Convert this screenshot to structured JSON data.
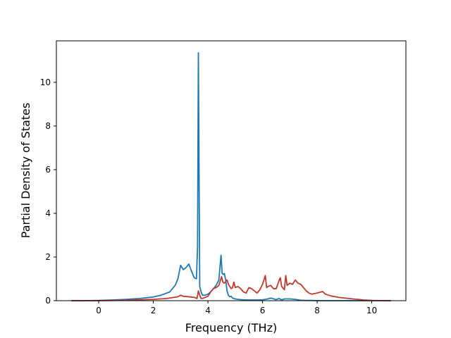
{
  "chart_data": {
    "type": "line",
    "title": "",
    "xlabel": "Frequency (THz)",
    "ylabel": "Partial Density of States",
    "xlim": [
      -1.55,
      11.25
    ],
    "ylim": [
      0,
      11.9
    ],
    "xticks": [
      0,
      2,
      4,
      6,
      8,
      10
    ],
    "yticks": [
      0,
      2,
      4,
      6,
      8,
      10
    ],
    "grid": false,
    "legend": "none",
    "series": [
      {
        "color": "#1f77b4",
        "x": [
          -1.0,
          -0.5,
          0.0,
          0.5,
          1.0,
          1.5,
          2.0,
          2.3,
          2.6,
          2.8,
          2.9,
          3.0,
          3.1,
          3.2,
          3.3,
          3.4,
          3.5,
          3.58,
          3.62,
          3.65,
          3.7,
          3.75,
          3.8,
          3.9,
          4.0,
          4.1,
          4.2,
          4.3,
          4.4,
          4.48,
          4.52,
          4.56,
          4.6,
          4.65,
          4.7,
          4.75,
          4.8,
          4.85,
          4.9,
          5.0,
          5.1,
          5.3,
          5.5,
          5.8,
          6.0,
          6.2,
          6.3,
          6.5,
          6.6,
          6.7,
          6.8,
          7.0,
          7.2,
          7.4,
          7.6,
          7.8,
          8.0,
          8.5,
          9.0,
          10.0,
          10.7
        ],
        "y": [
          0.0,
          0.0,
          0.01,
          0.03,
          0.06,
          0.1,
          0.17,
          0.26,
          0.4,
          0.7,
          1.0,
          1.62,
          1.42,
          1.52,
          1.68,
          1.35,
          1.05,
          1.0,
          2.5,
          11.35,
          0.65,
          0.4,
          0.25,
          0.25,
          0.3,
          0.4,
          0.55,
          0.7,
          0.95,
          2.08,
          1.25,
          1.2,
          1.25,
          0.95,
          0.45,
          0.25,
          0.18,
          0.2,
          0.12,
          0.08,
          0.06,
          0.04,
          0.03,
          0.03,
          0.04,
          0.08,
          0.12,
          0.05,
          0.1,
          0.04,
          0.08,
          0.08,
          0.06,
          0.02,
          0.01,
          0.01,
          0.0,
          0.0,
          0.0,
          0.0,
          0.0
        ]
      },
      {
        "color": "#c0392b",
        "x": [
          -1.0,
          -0.5,
          0.0,
          0.5,
          1.0,
          1.5,
          2.0,
          2.5,
          2.9,
          3.0,
          3.1,
          3.3,
          3.5,
          3.6,
          3.65,
          3.7,
          3.75,
          3.8,
          3.9,
          4.0,
          4.1,
          4.2,
          4.3,
          4.4,
          4.5,
          4.55,
          4.6,
          4.7,
          4.75,
          4.85,
          4.9,
          4.95,
          5.0,
          5.1,
          5.2,
          5.3,
          5.4,
          5.5,
          5.6,
          5.7,
          5.8,
          5.9,
          6.0,
          6.1,
          6.15,
          6.2,
          6.3,
          6.4,
          6.5,
          6.6,
          6.65,
          6.7,
          6.8,
          6.85,
          6.9,
          7.0,
          7.1,
          7.15,
          7.2,
          7.3,
          7.4,
          7.5,
          7.6,
          7.7,
          7.8,
          8.0,
          8.2,
          8.3,
          8.5,
          8.8,
          9.0,
          9.3,
          9.5,
          9.7,
          10.0,
          10.5,
          10.7
        ],
        "y": [
          0.0,
          0.0,
          0.0,
          0.01,
          0.02,
          0.04,
          0.06,
          0.1,
          0.18,
          0.25,
          0.2,
          0.18,
          0.15,
          0.1,
          0.45,
          0.25,
          0.1,
          0.1,
          0.15,
          0.2,
          0.4,
          0.55,
          0.6,
          0.7,
          1.1,
          0.85,
          0.8,
          0.95,
          0.75,
          0.55,
          0.6,
          0.85,
          0.6,
          0.65,
          0.55,
          0.4,
          0.35,
          0.6,
          0.55,
          0.45,
          0.35,
          0.5,
          0.75,
          1.15,
          0.6,
          0.65,
          0.7,
          0.55,
          0.55,
          0.9,
          1.05,
          0.65,
          0.5,
          1.15,
          0.7,
          0.8,
          0.75,
          0.85,
          0.95,
          0.8,
          0.75,
          0.6,
          0.45,
          0.35,
          0.3,
          0.35,
          0.42,
          0.3,
          0.22,
          0.15,
          0.12,
          0.08,
          0.06,
          0.03,
          0.01,
          0.0,
          0.0
        ]
      }
    ]
  }
}
